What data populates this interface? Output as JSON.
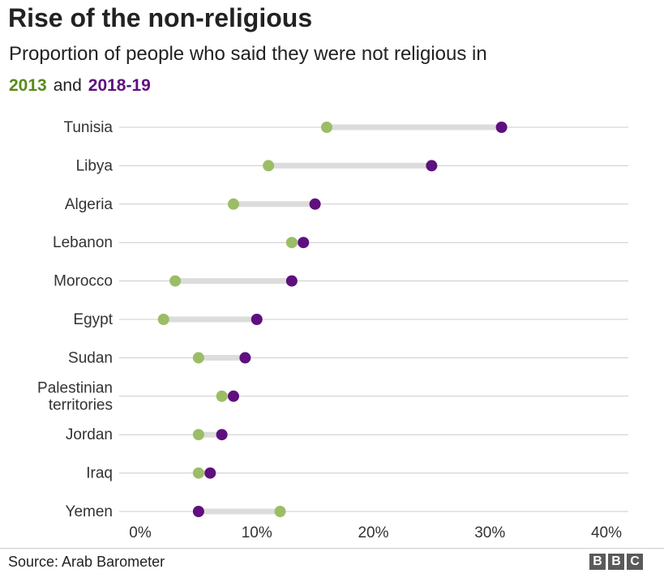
{
  "title": "Rise of the non-religious",
  "subtitle": "Proportion of people who said they were not religious in",
  "legend": {
    "label_2013": "2013",
    "connector": "and",
    "label_2019": "2018-19"
  },
  "colors": {
    "c2013": "#9bbd66",
    "c2019": "#5f0f7e",
    "range_bar": "#dcdcdc",
    "grid": "#cccccc",
    "legend_2013": "#5a8a16",
    "legend_2019": "#5f0f7e"
  },
  "source": "Source: Arab Barometer",
  "logo": {
    "letters": [
      "B",
      "B",
      "C"
    ]
  },
  "chart_data": {
    "type": "dumbbell",
    "series": [
      {
        "name": "2013"
      },
      {
        "name": "2018-19"
      }
    ],
    "categories": [
      {
        "label": [
          "Tunisia"
        ],
        "v2013": 16,
        "v2019": 31
      },
      {
        "label": [
          "Libya"
        ],
        "v2013": 11,
        "v2019": 25
      },
      {
        "label": [
          "Algeria"
        ],
        "v2013": 8,
        "v2019": 15
      },
      {
        "label": [
          "Lebanon"
        ],
        "v2013": 13,
        "v2019": 14
      },
      {
        "label": [
          "Morocco"
        ],
        "v2013": 3,
        "v2019": 13
      },
      {
        "label": [
          "Egypt"
        ],
        "v2013": 2,
        "v2019": 10
      },
      {
        "label": [
          "Sudan"
        ],
        "v2013": 5,
        "v2019": 9
      },
      {
        "label": [
          "Palestinian",
          "territories"
        ],
        "v2013": 7,
        "v2019": 8
      },
      {
        "label": [
          "Jordan"
        ],
        "v2013": 5,
        "v2019": 7
      },
      {
        "label": [
          "Iraq"
        ],
        "v2013": 5,
        "v2019": 6
      },
      {
        "label": [
          "Yemen"
        ],
        "v2013": 12,
        "v2019": 5
      }
    ],
    "xlim": [
      0,
      40
    ],
    "xticks": [
      0,
      10,
      20,
      30,
      40
    ],
    "tick_labels": [
      "0%",
      "10%",
      "20%",
      "30%",
      "40%"
    ],
    "grid": true
  }
}
